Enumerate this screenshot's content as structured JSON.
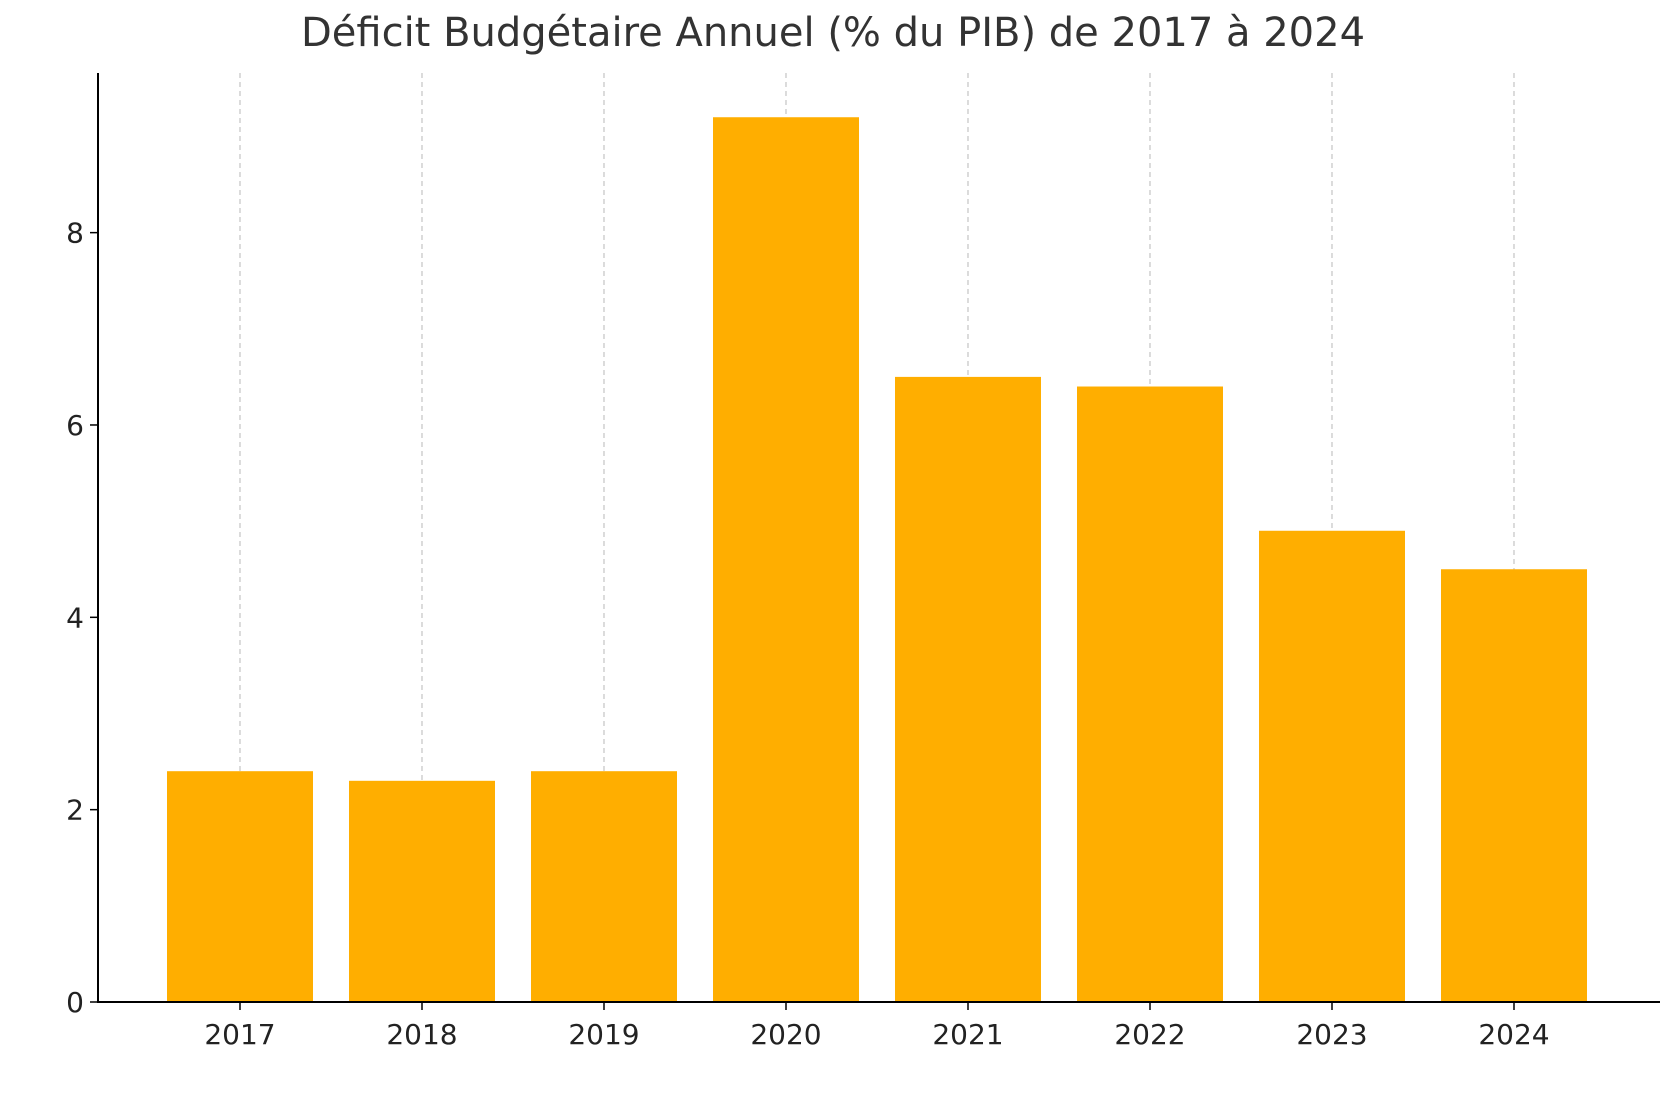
{
  "chart_data": {
    "type": "bar",
    "title": "Déficit Budgétaire Annuel (% du PIB) de 2017 à 2024",
    "categories": [
      "2017",
      "2018",
      "2019",
      "2020",
      "2021",
      "2022",
      "2023",
      "2024"
    ],
    "values": [
      2.4,
      2.3,
      2.4,
      9.2,
      6.5,
      6.4,
      4.9,
      4.5
    ],
    "xlabel": "",
    "ylabel": "",
    "ylim": [
      0,
      9.66
    ],
    "yticks": [
      0,
      2,
      4,
      6,
      8
    ],
    "grid": "vertical dashed",
    "legend": "none",
    "colors": {
      "bar": "#FFAE00",
      "grid": "#c8c8c8",
      "axis": "#000000"
    }
  }
}
